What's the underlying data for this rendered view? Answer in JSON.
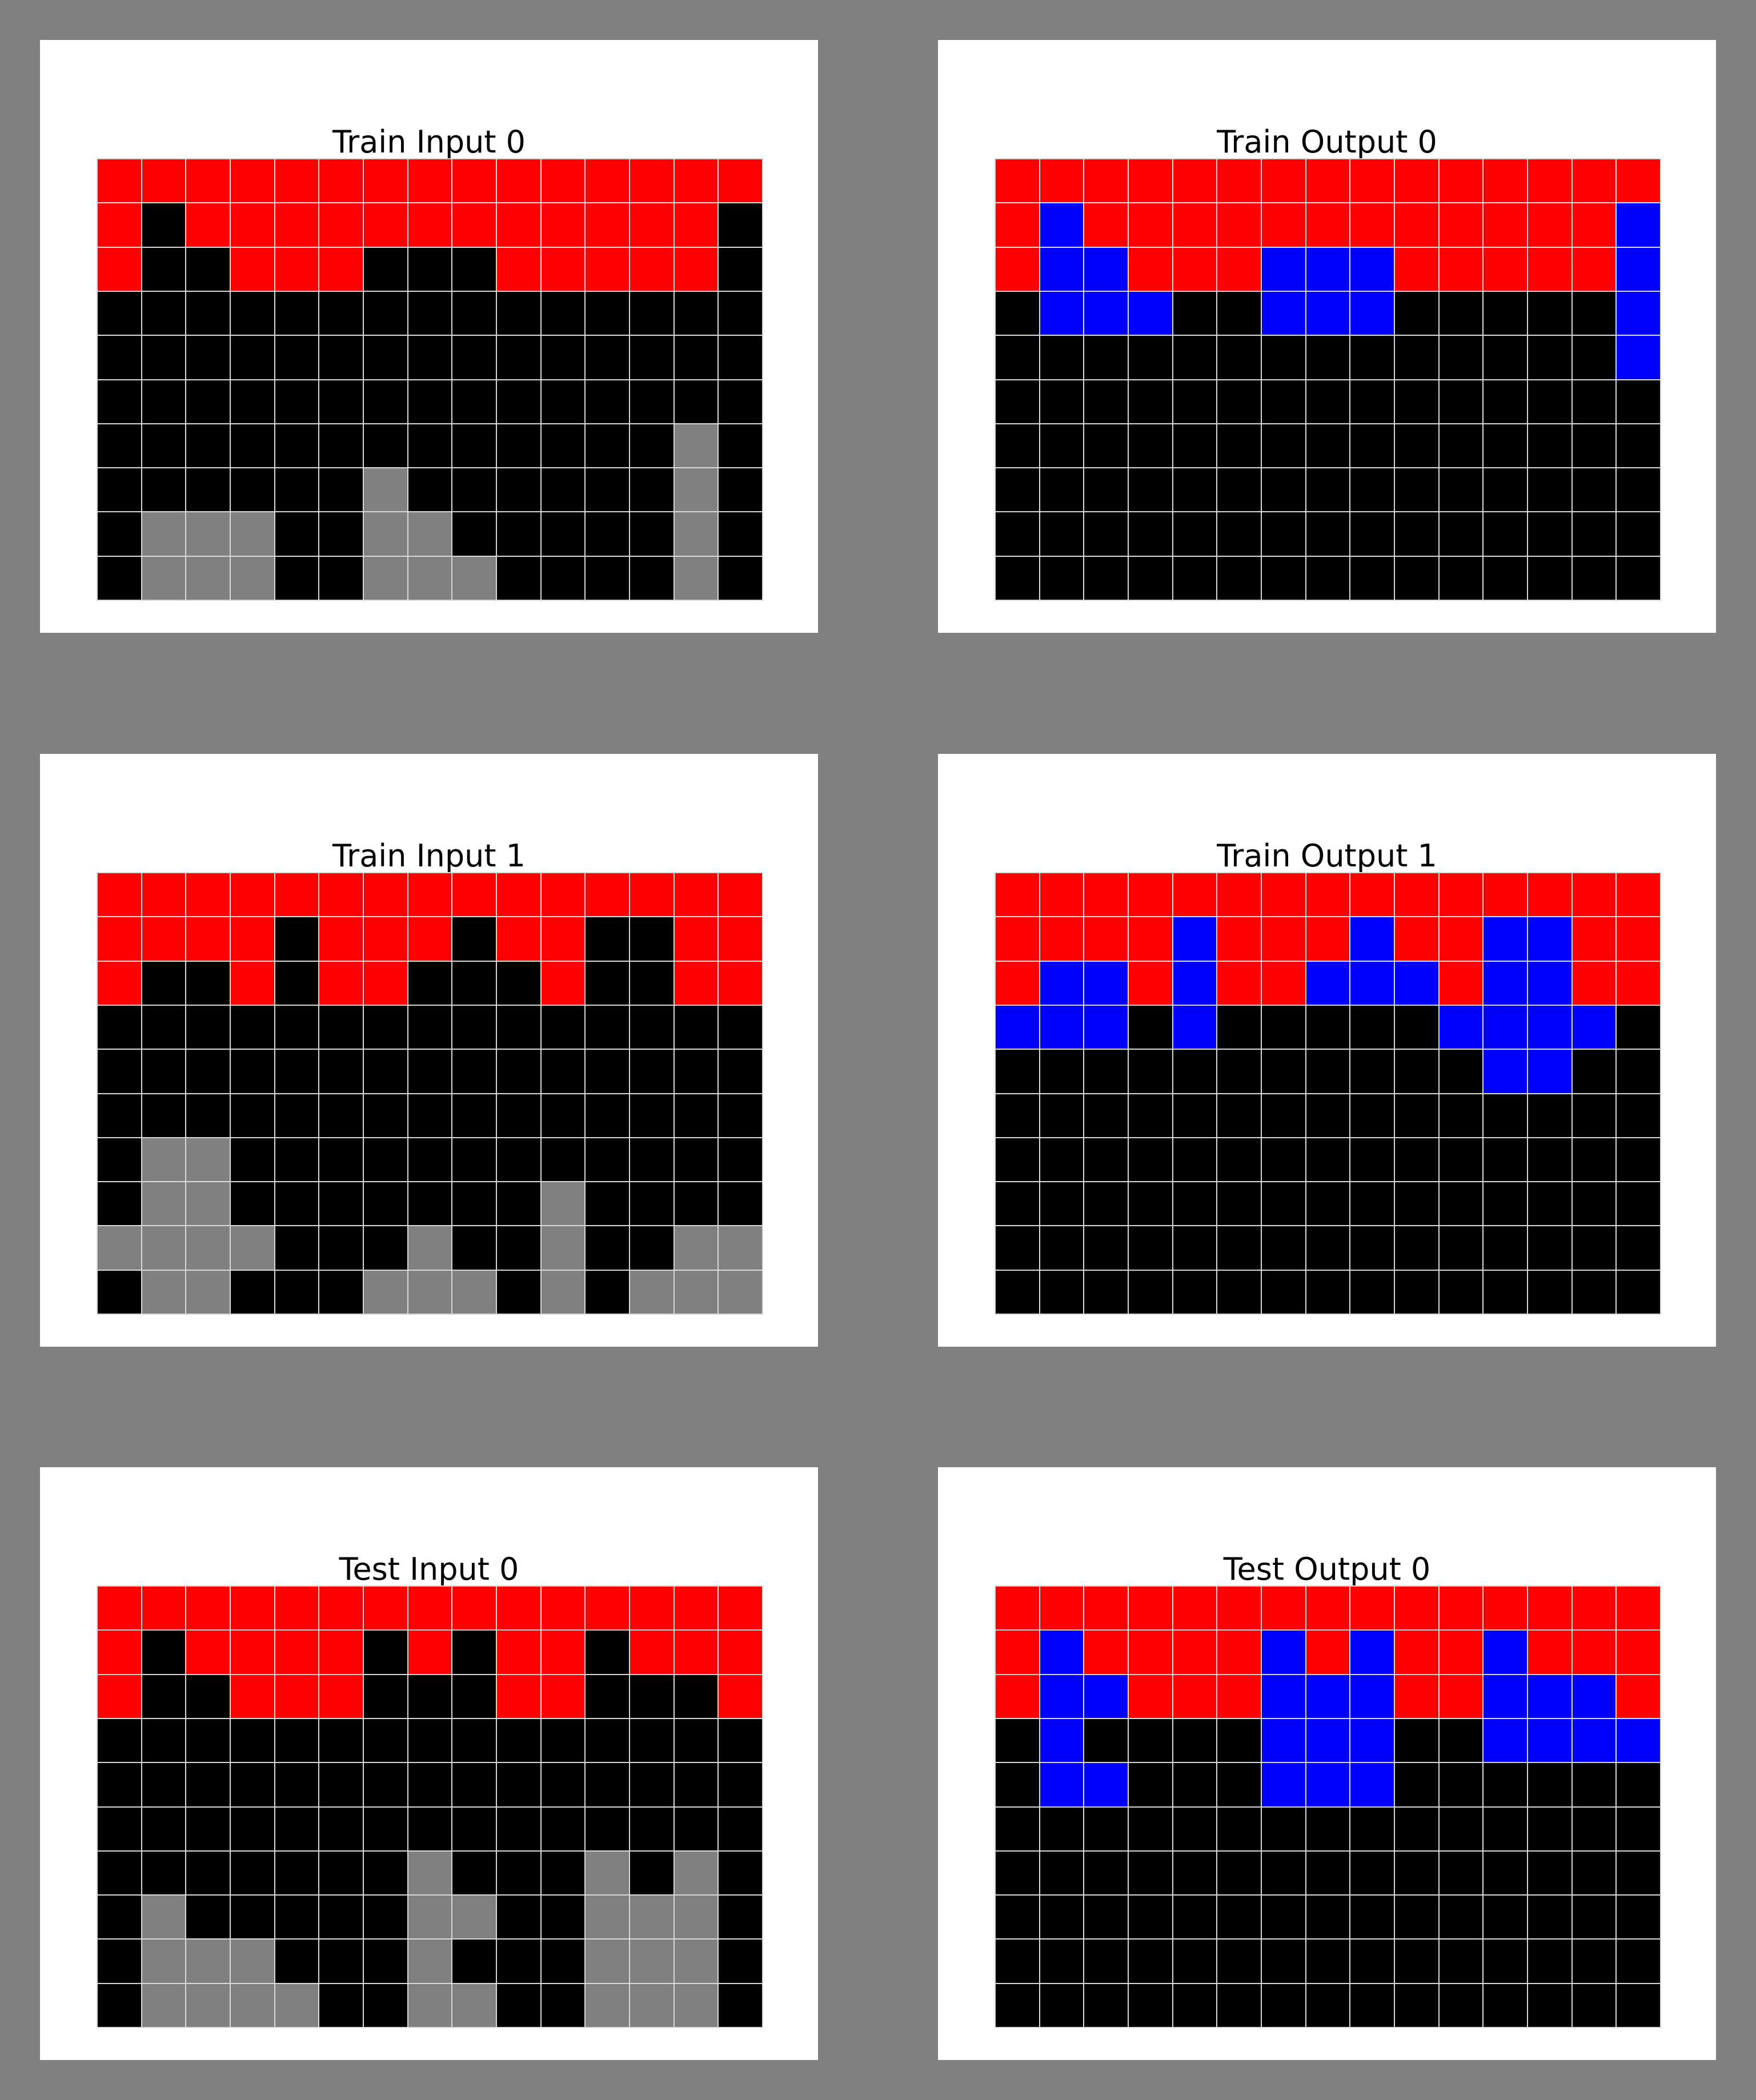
{
  "palette": {
    "0": "#000000",
    "1": "#0000ff",
    "2": "#ff0000",
    "5": "#808080"
  },
  "panels": [
    {
      "title": "Train Input 0",
      "grid": [
        [
          2,
          2,
          2,
          2,
          2,
          2,
          2,
          2,
          2,
          2,
          2,
          2,
          2,
          2,
          2
        ],
        [
          2,
          0,
          2,
          2,
          2,
          2,
          2,
          2,
          2,
          2,
          2,
          2,
          2,
          2,
          0
        ],
        [
          2,
          0,
          0,
          2,
          2,
          2,
          0,
          0,
          0,
          2,
          2,
          2,
          2,
          2,
          0
        ],
        [
          0,
          0,
          0,
          0,
          0,
          0,
          0,
          0,
          0,
          0,
          0,
          0,
          0,
          0,
          0
        ],
        [
          0,
          0,
          0,
          0,
          0,
          0,
          0,
          0,
          0,
          0,
          0,
          0,
          0,
          0,
          0
        ],
        [
          0,
          0,
          0,
          0,
          0,
          0,
          0,
          0,
          0,
          0,
          0,
          0,
          0,
          0,
          0
        ],
        [
          0,
          0,
          0,
          0,
          0,
          0,
          0,
          0,
          0,
          0,
          0,
          0,
          0,
          5,
          0
        ],
        [
          0,
          0,
          0,
          0,
          0,
          0,
          5,
          0,
          0,
          0,
          0,
          0,
          0,
          5,
          0
        ],
        [
          0,
          5,
          5,
          5,
          0,
          0,
          5,
          5,
          0,
          0,
          0,
          0,
          0,
          5,
          0
        ],
        [
          0,
          5,
          5,
          5,
          0,
          0,
          5,
          5,
          5,
          0,
          0,
          0,
          0,
          5,
          0
        ]
      ]
    },
    {
      "title": "Train Output 0",
      "grid": [
        [
          2,
          2,
          2,
          2,
          2,
          2,
          2,
          2,
          2,
          2,
          2,
          2,
          2,
          2,
          2
        ],
        [
          2,
          1,
          2,
          2,
          2,
          2,
          2,
          2,
          2,
          2,
          2,
          2,
          2,
          2,
          1
        ],
        [
          2,
          1,
          1,
          2,
          2,
          2,
          1,
          1,
          1,
          2,
          2,
          2,
          2,
          2,
          1
        ],
        [
          0,
          1,
          1,
          1,
          0,
          0,
          1,
          1,
          1,
          0,
          0,
          0,
          0,
          0,
          1
        ],
        [
          0,
          0,
          0,
          0,
          0,
          0,
          0,
          0,
          0,
          0,
          0,
          0,
          0,
          0,
          1
        ],
        [
          0,
          0,
          0,
          0,
          0,
          0,
          0,
          0,
          0,
          0,
          0,
          0,
          0,
          0,
          0
        ],
        [
          0,
          0,
          0,
          0,
          0,
          0,
          0,
          0,
          0,
          0,
          0,
          0,
          0,
          0,
          0
        ],
        [
          0,
          0,
          0,
          0,
          0,
          0,
          0,
          0,
          0,
          0,
          0,
          0,
          0,
          0,
          0
        ],
        [
          0,
          0,
          0,
          0,
          0,
          0,
          0,
          0,
          0,
          0,
          0,
          0,
          0,
          0,
          0
        ],
        [
          0,
          0,
          0,
          0,
          0,
          0,
          0,
          0,
          0,
          0,
          0,
          0,
          0,
          0,
          0
        ]
      ]
    },
    {
      "title": "Train Input 1",
      "grid": [
        [
          2,
          2,
          2,
          2,
          2,
          2,
          2,
          2,
          2,
          2,
          2,
          2,
          2,
          2,
          2
        ],
        [
          2,
          2,
          2,
          2,
          0,
          2,
          2,
          2,
          0,
          2,
          2,
          0,
          0,
          2,
          2
        ],
        [
          2,
          0,
          0,
          2,
          0,
          2,
          2,
          0,
          0,
          0,
          2,
          0,
          0,
          2,
          2
        ],
        [
          0,
          0,
          0,
          0,
          0,
          0,
          0,
          0,
          0,
          0,
          0,
          0,
          0,
          0,
          0
        ],
        [
          0,
          0,
          0,
          0,
          0,
          0,
          0,
          0,
          0,
          0,
          0,
          0,
          0,
          0,
          0
        ],
        [
          0,
          0,
          0,
          0,
          0,
          0,
          0,
          0,
          0,
          0,
          0,
          0,
          0,
          0,
          0
        ],
        [
          0,
          5,
          5,
          0,
          0,
          0,
          0,
          0,
          0,
          0,
          0,
          0,
          0,
          0,
          0
        ],
        [
          0,
          5,
          5,
          0,
          0,
          0,
          0,
          0,
          0,
          0,
          5,
          0,
          0,
          0,
          0
        ],
        [
          5,
          5,
          5,
          5,
          0,
          0,
          0,
          5,
          0,
          0,
          5,
          0,
          0,
          5,
          5
        ],
        [
          0,
          5,
          5,
          0,
          0,
          0,
          5,
          5,
          5,
          0,
          5,
          0,
          5,
          5,
          5
        ]
      ]
    },
    {
      "title": "Train Output 1",
      "grid": [
        [
          2,
          2,
          2,
          2,
          2,
          2,
          2,
          2,
          2,
          2,
          2,
          2,
          2,
          2,
          2
        ],
        [
          2,
          2,
          2,
          2,
          1,
          2,
          2,
          2,
          1,
          2,
          2,
          1,
          1,
          2,
          2
        ],
        [
          2,
          1,
          1,
          2,
          1,
          2,
          2,
          1,
          1,
          1,
          2,
          1,
          1,
          2,
          2
        ],
        [
          1,
          1,
          1,
          0,
          1,
          0,
          0,
          0,
          0,
          0,
          1,
          1,
          1,
          1,
          0
        ],
        [
          0,
          0,
          0,
          0,
          0,
          0,
          0,
          0,
          0,
          0,
          0,
          1,
          1,
          0,
          0
        ],
        [
          0,
          0,
          0,
          0,
          0,
          0,
          0,
          0,
          0,
          0,
          0,
          0,
          0,
          0,
          0
        ],
        [
          0,
          0,
          0,
          0,
          0,
          0,
          0,
          0,
          0,
          0,
          0,
          0,
          0,
          0,
          0
        ],
        [
          0,
          0,
          0,
          0,
          0,
          0,
          0,
          0,
          0,
          0,
          0,
          0,
          0,
          0,
          0
        ],
        [
          0,
          0,
          0,
          0,
          0,
          0,
          0,
          0,
          0,
          0,
          0,
          0,
          0,
          0,
          0
        ],
        [
          0,
          0,
          0,
          0,
          0,
          0,
          0,
          0,
          0,
          0,
          0,
          0,
          0,
          0,
          0
        ]
      ]
    },
    {
      "title": "Test Input 0",
      "grid": [
        [
          2,
          2,
          2,
          2,
          2,
          2,
          2,
          2,
          2,
          2,
          2,
          2,
          2,
          2,
          2
        ],
        [
          2,
          0,
          2,
          2,
          2,
          2,
          0,
          2,
          0,
          2,
          2,
          0,
          2,
          2,
          2
        ],
        [
          2,
          0,
          0,
          2,
          2,
          2,
          0,
          0,
          0,
          2,
          2,
          0,
          0,
          0,
          2
        ],
        [
          0,
          0,
          0,
          0,
          0,
          0,
          0,
          0,
          0,
          0,
          0,
          0,
          0,
          0,
          0
        ],
        [
          0,
          0,
          0,
          0,
          0,
          0,
          0,
          0,
          0,
          0,
          0,
          0,
          0,
          0,
          0
        ],
        [
          0,
          0,
          0,
          0,
          0,
          0,
          0,
          0,
          0,
          0,
          0,
          0,
          0,
          0,
          0
        ],
        [
          0,
          0,
          0,
          0,
          0,
          0,
          0,
          5,
          0,
          0,
          0,
          5,
          0,
          5,
          0
        ],
        [
          0,
          5,
          0,
          0,
          0,
          0,
          0,
          5,
          5,
          0,
          0,
          5,
          5,
          5,
          0
        ],
        [
          0,
          5,
          5,
          5,
          0,
          0,
          0,
          5,
          0,
          0,
          0,
          5,
          5,
          5,
          0
        ],
        [
          0,
          5,
          5,
          5,
          5,
          0,
          0,
          5,
          5,
          0,
          0,
          5,
          5,
          5,
          0
        ]
      ]
    },
    {
      "title": "Test Output 0",
      "grid": [
        [
          2,
          2,
          2,
          2,
          2,
          2,
          2,
          2,
          2,
          2,
          2,
          2,
          2,
          2,
          2
        ],
        [
          2,
          1,
          2,
          2,
          2,
          2,
          1,
          2,
          1,
          2,
          2,
          1,
          2,
          2,
          2
        ],
        [
          2,
          1,
          1,
          2,
          2,
          2,
          1,
          1,
          1,
          2,
          2,
          1,
          1,
          1,
          2
        ],
        [
          0,
          1,
          0,
          0,
          0,
          0,
          1,
          1,
          1,
          0,
          0,
          1,
          1,
          1,
          1
        ],
        [
          0,
          1,
          1,
          0,
          0,
          0,
          1,
          1,
          1,
          0,
          0,
          0,
          0,
          0,
          0
        ],
        [
          0,
          0,
          0,
          0,
          0,
          0,
          0,
          0,
          0,
          0,
          0,
          0,
          0,
          0,
          0
        ],
        [
          0,
          0,
          0,
          0,
          0,
          0,
          0,
          0,
          0,
          0,
          0,
          0,
          0,
          0,
          0
        ],
        [
          0,
          0,
          0,
          0,
          0,
          0,
          0,
          0,
          0,
          0,
          0,
          0,
          0,
          0,
          0
        ],
        [
          0,
          0,
          0,
          0,
          0,
          0,
          0,
          0,
          0,
          0,
          0,
          0,
          0,
          0,
          0
        ],
        [
          0,
          0,
          0,
          0,
          0,
          0,
          0,
          0,
          0,
          0,
          0,
          0,
          0,
          0,
          0
        ]
      ]
    }
  ]
}
